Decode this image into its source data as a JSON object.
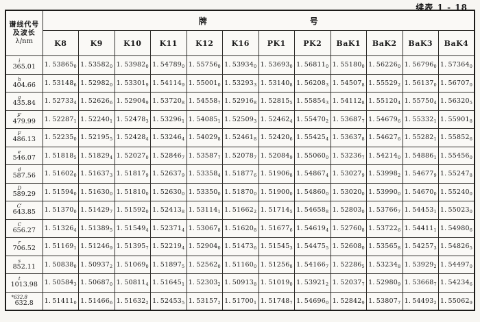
{
  "page": {
    "continuation_label": "续表 1 - 18"
  },
  "table": {
    "corner": {
      "line1": "谱线代号",
      "line2": "及波长",
      "line3": "λ/nm"
    },
    "group_header_left": "牌",
    "group_header_right": "号",
    "columns": [
      "K8",
      "K9",
      "K10",
      "K11",
      "K12",
      "K16",
      "PK1",
      "PK2",
      "BaK1",
      "BaK2",
      "BaK3",
      "BaK4"
    ],
    "rows": [
      {
        "sym": "i",
        "wavelength": "365.01",
        "values": [
          "1.53865_0",
          "1.53582_0",
          "1.53982_0",
          "1.54789_0",
          "1.55756_0",
          "1.53934_0",
          "1.53693_0",
          "1.56811_0",
          "1.55180_0",
          "1.56226_0",
          "1.56796_0",
          "1.57364_0"
        ]
      },
      {
        "sym": "h",
        "wavelength": "404.66",
        "values": [
          "1.53148_6",
          "1.52982_0",
          "1.53301_9",
          "1.54114_9",
          "1.55001_0",
          "1.53293_3",
          "1.53140_8",
          "1.56208_3",
          "1.54507_8",
          "1.55529_2",
          "1.56137_0",
          "1.56707_0"
        ]
      },
      {
        "sym": "g",
        "wavelength": "435.84",
        "values": [
          "1.52733_4",
          "1.52626_6",
          "1.52904_9",
          "1.53720_8",
          "1.54558_7",
          "1.52916_8",
          "1.52815_5",
          "1.55854_3",
          "1.54112_8",
          "1.55120_4",
          "1.55750_4",
          "1.56320_5"
        ]
      },
      {
        "sym": "F′",
        "wavelength": "479.99",
        "values": [
          "1.52287_1",
          "1.52240_1",
          "1.52478_3",
          "1.53296_1",
          "1.54085_1",
          "1.52509_3",
          "1.52462_4",
          "1.55470_2",
          "1.53687_7",
          "1.54679_6",
          "1.55332_1",
          "1.55901_8"
        ]
      },
      {
        "sym": "F",
        "wavelength": "486.13",
        "values": [
          "1.52235_0",
          "1.52195_5",
          "1.52428_4",
          "1.53246_4",
          "1.54029_8",
          "1.52461_8",
          "1.52420_6",
          "1.55425_4",
          "1.53637_8",
          "1.54627_6",
          "1.55282_1",
          "1.55852_6"
        ]
      },
      {
        "sym": "e",
        "wavelength": "546.07",
        "values": [
          "1.51818_5",
          "1.51829_4",
          "1.52027_0",
          "1.52846_7",
          "1.53587_7",
          "1.52078_7",
          "1.52084_9",
          "1.55060_0",
          "1.53236_7",
          "1.54214_0",
          "1.54886_1",
          "1.55456_0"
        ]
      },
      {
        "sym": "d",
        "wavelength": "587.56",
        "values": [
          "1.51602_0",
          "1.51637_3",
          "1.51817_9",
          "1.52637_9",
          "1.53358_4",
          "1.51877_6",
          "1.51906_8",
          "1.54867_4",
          "1.53027_9",
          "1.53998_2",
          "1.54677_9",
          "1.55247_8"
        ]
      },
      {
        "sym": "D",
        "wavelength": "589.29",
        "values": [
          "1.51594_0",
          "1.51630_0",
          "1.51810_0",
          "1.52630_0",
          "1.53350_0",
          "1.51870_0",
          "1.51900_0",
          "1.54860_0",
          "1.53020_0",
          "1.53990_0",
          "1.54670_0",
          "1.55240_0"
        ]
      },
      {
        "sym": "C′",
        "wavelength": "643.85",
        "values": [
          "1.51370_0",
          "1.51429_7",
          "1.51592_0",
          "1.52413_8",
          "1.53114_1",
          "1.51662_2",
          "1.51714_5",
          "1.54658_8",
          "1.52803_0",
          "1.53766_7",
          "1.54453_1",
          "1.55023_0"
        ]
      },
      {
        "sym": "C",
        "wavelength": "656.27",
        "values": [
          "1.51326_4",
          "1.51389_5",
          "1.51549_4",
          "1.52371_4",
          "1.53067_8",
          "1.51620_8",
          "1.51677_6",
          "1.54619_4",
          "1.52760_8",
          "1.53722_6",
          "1.54411_1",
          "1.54980_6"
        ]
      },
      {
        "sym": "r",
        "wavelength": "706.52",
        "values": [
          "1.51169_1",
          "1.51246_9",
          "1.51395_7",
          "1.52219_4",
          "1.52904_0",
          "1.51473_6",
          "1.51545_3",
          "1.54475_5",
          "1.52608_0",
          "1.53565_8",
          "1.54257_3",
          "1.54826_5"
        ]
      },
      {
        "sym": "s",
        "wavelength": "852.11",
        "values": [
          "1.50838_0",
          "1.50937_2",
          "1.51069_0",
          "1.51897_5",
          "1.52562_0",
          "1.51160_0",
          "1.51256_8",
          "1.54166_7",
          "1.52286_5",
          "1.53234_8",
          "1.53929_2",
          "1.54497_0"
        ]
      },
      {
        "sym": "t",
        "wavelength": "1013.98",
        "values": [
          "1.50584_3",
          "1.50687_0",
          "1.50811_4",
          "1.51645_1",
          "1.52303_2",
          "1.50913_8",
          "1.51019_0",
          "1.53921_2",
          "1.52037_7",
          "1.52980_9",
          "1.53668_7",
          "1.54234_6"
        ]
      },
      {
        "sym": "*632.8",
        "wavelength": "632.8",
        "values": [
          "1.51411_0",
          "1.51466_6",
          "1.51632_2",
          "1.52453_5",
          "1.53157_2",
          "1.51700_1",
          "1.51748_7",
          "1.54696_0",
          "1.52842_9",
          "1.53807_7",
          "1.54493_2",
          "1.55062_9"
        ]
      }
    ]
  }
}
